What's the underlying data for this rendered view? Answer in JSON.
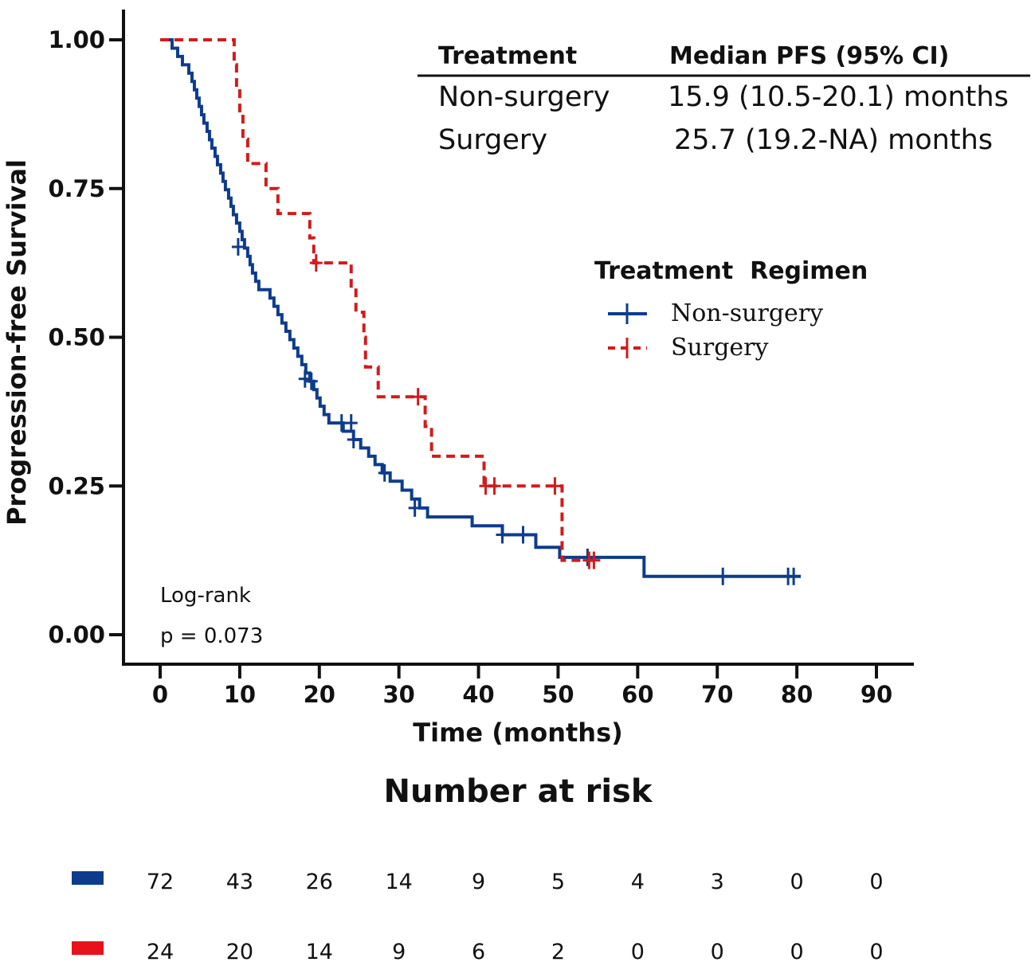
{
  "chart_data": {
    "type": "line",
    "subtype": "kaplan-meier",
    "xlabel": "Time (months)",
    "ylabel": "Progression-free Survival",
    "xlim": [
      0,
      90
    ],
    "ylim": [
      0,
      1
    ],
    "x_ticks": [
      "0",
      "10",
      "20",
      "30",
      "40",
      "50",
      "60",
      "70",
      "80",
      "90"
    ],
    "y_ticks": [
      "0.00",
      "0.25",
      "0.50",
      "0.75",
      "1.00"
    ],
    "colors": {
      "non_surgery": "#0d3c8c",
      "surgery": "#d01c1c"
    },
    "series": [
      {
        "name": "Non-surgery",
        "line_style": "solid",
        "steps": [
          [
            0,
            1.0
          ],
          [
            1.5,
            0.986
          ],
          [
            2.2,
            0.972
          ],
          [
            2.8,
            0.958
          ],
          [
            3.6,
            0.944
          ],
          [
            4.0,
            0.93
          ],
          [
            4.3,
            0.916
          ],
          [
            4.6,
            0.902
          ],
          [
            4.9,
            0.888
          ],
          [
            5.2,
            0.874
          ],
          [
            5.5,
            0.86
          ],
          [
            5.9,
            0.846
          ],
          [
            6.2,
            0.832
          ],
          [
            6.5,
            0.818
          ],
          [
            6.9,
            0.804
          ],
          [
            7.2,
            0.79
          ],
          [
            7.6,
            0.776
          ],
          [
            7.9,
            0.762
          ],
          [
            8.2,
            0.748
          ],
          [
            8.6,
            0.734
          ],
          [
            8.9,
            0.72
          ],
          [
            9.2,
            0.706
          ],
          [
            9.6,
            0.692
          ],
          [
            10.0,
            0.678
          ],
          [
            10.3,
            0.664
          ],
          [
            10.6,
            0.65
          ],
          [
            11.0,
            0.636
          ],
          [
            11.3,
            0.622
          ],
          [
            11.6,
            0.608
          ],
          [
            12.0,
            0.594
          ],
          [
            12.4,
            0.58
          ],
          [
            13.8,
            0.566
          ],
          [
            14.3,
            0.552
          ],
          [
            14.8,
            0.538
          ],
          [
            15.3,
            0.524
          ],
          [
            15.8,
            0.51
          ],
          [
            16.3,
            0.496
          ],
          [
            16.8,
            0.482
          ],
          [
            17.3,
            0.468
          ],
          [
            17.8,
            0.454
          ],
          [
            18.3,
            0.44
          ],
          [
            18.8,
            0.426
          ],
          [
            19.3,
            0.412
          ],
          [
            19.7,
            0.398
          ],
          [
            20.1,
            0.384
          ],
          [
            20.6,
            0.37
          ],
          [
            21.2,
            0.356
          ],
          [
            23.0,
            0.342
          ],
          [
            24.3,
            0.328
          ],
          [
            25.2,
            0.314
          ],
          [
            26.2,
            0.3
          ],
          [
            27.0,
            0.286
          ],
          [
            27.9,
            0.272
          ],
          [
            28.9,
            0.258
          ],
          [
            30.4,
            0.243
          ],
          [
            31.6,
            0.228
          ],
          [
            32.6,
            0.213
          ],
          [
            33.6,
            0.198
          ],
          [
            39.2,
            0.183
          ],
          [
            43.0,
            0.168
          ],
          [
            47.2,
            0.147
          ],
          [
            50.2,
            0.13
          ],
          [
            60.8,
            0.098
          ]
        ],
        "end": 80.5,
        "censored": [
          [
            9.8,
            0.652
          ],
          [
            18.2,
            0.43
          ],
          [
            19.0,
            0.426
          ],
          [
            22.8,
            0.356
          ],
          [
            24.0,
            0.356
          ],
          [
            24.3,
            0.328
          ],
          [
            28.2,
            0.272
          ],
          [
            32.0,
            0.213
          ],
          [
            43.0,
            0.168
          ],
          [
            45.6,
            0.168
          ],
          [
            53.7,
            0.13
          ],
          [
            70.7,
            0.098
          ],
          [
            78.9,
            0.098
          ],
          [
            79.6,
            0.098
          ]
        ]
      },
      {
        "name": "Surgery",
        "line_style": "dashed",
        "steps": [
          [
            0,
            1.0
          ],
          [
            9.3,
            0.958
          ],
          [
            9.6,
            0.917
          ],
          [
            10.0,
            0.875
          ],
          [
            10.4,
            0.833
          ],
          [
            11.0,
            0.792
          ],
          [
            13.3,
            0.75
          ],
          [
            14.8,
            0.708
          ],
          [
            18.8,
            0.667
          ],
          [
            19.3,
            0.625
          ],
          [
            24.0,
            0.583
          ],
          [
            24.6,
            0.542
          ],
          [
            25.6,
            0.5
          ],
          [
            25.8,
            0.45
          ],
          [
            27.4,
            0.4
          ],
          [
            33.3,
            0.35
          ],
          [
            34.1,
            0.3
          ],
          [
            40.7,
            0.25
          ],
          [
            50.5,
            0.125
          ]
        ],
        "end": 54.5,
        "censored": [
          [
            19.6,
            0.625
          ],
          [
            32.4,
            0.4
          ],
          [
            40.9,
            0.25
          ],
          [
            42.0,
            0.25
          ],
          [
            49.6,
            0.25
          ],
          [
            53.9,
            0.125
          ],
          [
            54.5,
            0.125
          ]
        ]
      }
    ]
  },
  "median_table": {
    "header": {
      "treatment": "Treatment",
      "median": "Median PFS (95% CI)"
    },
    "rows": [
      {
        "treatment": "Non-surgery",
        "median": "15.9 (10.5-20.1) months"
      },
      {
        "treatment": "Surgery",
        "median": "25.7 (19.2-NA) months"
      }
    ]
  },
  "legend": {
    "title": "Treatment  Regimen",
    "items": [
      "Non-surgery",
      "Surgery"
    ]
  },
  "logrank": {
    "label": "Log-rank",
    "p": "p = 0.073"
  },
  "risk_table": {
    "title": "Number at risk",
    "rows": [
      {
        "group": "Non-surgery",
        "values": [
          "72",
          "43",
          "26",
          "14",
          "9",
          "5",
          "4",
          "3",
          "0",
          "0"
        ]
      },
      {
        "group": "Surgery",
        "values": [
          "24",
          "20",
          "14",
          "9",
          "6",
          "2",
          "0",
          "0",
          "0",
          "0"
        ]
      }
    ]
  }
}
